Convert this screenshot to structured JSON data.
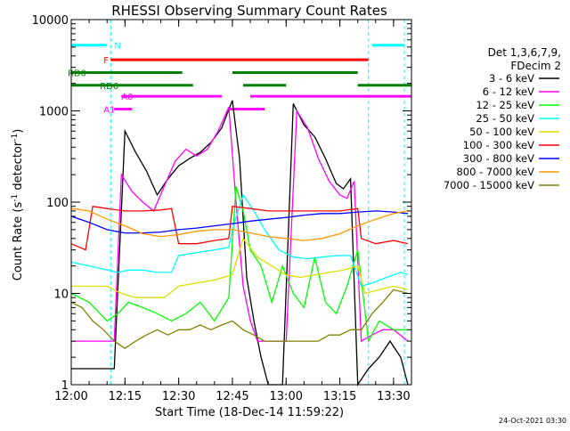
{
  "chart_data": {
    "type": "line",
    "title": "RHESSI Observing Summary Count Rates",
    "xlabel": "Start Time (18-Dec-14 11:59:22)",
    "ylabel_main": "Count Rate (s",
    "ylabel_sup": "-1",
    "ylabel_mid": " detector",
    "ylabel_sup2": "-1",
    "ylabel_end": ")",
    "yscale": "log",
    "xlim": [
      "12:00",
      "13:35"
    ],
    "ylim": [
      1,
      10000
    ],
    "xticks": [
      "12:00",
      "12:15",
      "12:30",
      "12:45",
      "13:00",
      "13:15",
      "13:30"
    ],
    "yticks": [
      {
        "value": 1,
        "label": "1"
      },
      {
        "value": 10,
        "label": "10"
      },
      {
        "value": 100,
        "label": "100"
      },
      {
        "value": 1000,
        "label": "1000"
      },
      {
        "value": 10000,
        "label": "10000"
      }
    ],
    "legend_title_1": "Det 1,3,6,7,9,",
    "legend_title_2": "FDecim 2",
    "legend_placement": "right",
    "footer_timestamp": "24-Oct-2021 03:30",
    "series": [
      {
        "name": "3 - 6 keV",
        "color": "#000000",
        "x": [
          "12:00",
          "12:05",
          "12:10",
          "12:12",
          "12:15",
          "12:18",
          "12:21",
          "12:24",
          "12:27",
          "12:30",
          "12:33",
          "12:36",
          "12:39",
          "12:42",
          "12:45",
          "12:47",
          "12:49",
          "12:51",
          "12:53",
          "12:55",
          "12:57",
          "12:59",
          "13:02",
          "13:05",
          "13:08",
          "13:11",
          "13:14",
          "13:16",
          "13:18",
          "13:20",
          "13:23",
          "13:26",
          "13:29",
          "13:32",
          "13:34"
        ],
        "y": [
          1.5,
          1.5,
          1.5,
          1.5,
          600,
          350,
          220,
          120,
          180,
          250,
          300,
          350,
          450,
          650,
          1300,
          300,
          15,
          5,
          2,
          1,
          1,
          1,
          1200,
          700,
          520,
          300,
          160,
          140,
          180,
          1,
          1.5,
          2,
          3,
          2,
          1
        ]
      },
      {
        "name": "6 - 12 keV",
        "color": "#ff00ff",
        "x": [
          "12:00",
          "12:05",
          "12:10",
          "12:12",
          "12:14",
          "12:17",
          "12:20",
          "12:23",
          "12:26",
          "12:29",
          "12:32",
          "12:35",
          "12:38",
          "12:41",
          "12:44",
          "12:46",
          "12:48",
          "12:50",
          "12:52",
          "12:54",
          "12:57",
          "13:00",
          "13:03",
          "13:06",
          "13:09",
          "13:12",
          "13:15",
          "13:17",
          "13:19",
          "13:21",
          "13:24",
          "13:27",
          "13:30",
          "13:34"
        ],
        "y": [
          3,
          3,
          3,
          3,
          200,
          130,
          100,
          80,
          150,
          280,
          380,
          320,
          380,
          600,
          1100,
          100,
          12,
          5,
          3,
          3,
          3,
          3,
          1000,
          650,
          300,
          170,
          120,
          110,
          170,
          3,
          3.5,
          4,
          4,
          3
        ]
      },
      {
        "name": "12 - 25 keV",
        "color": "#00ff00",
        "x": [
          "12:00",
          "12:05",
          "12:10",
          "12:13",
          "12:16",
          "12:20",
          "12:24",
          "12:28",
          "12:32",
          "12:36",
          "12:40",
          "12:44",
          "12:46",
          "12:48",
          "12:50",
          "12:53",
          "12:56",
          "12:59",
          "13:02",
          "13:05",
          "13:08",
          "13:11",
          "13:14",
          "13:17",
          "13:20",
          "13:23",
          "13:26",
          "13:30",
          "13:34"
        ],
        "y": [
          10,
          8,
          5,
          6,
          8,
          7,
          6,
          5,
          6,
          8,
          5,
          9,
          150,
          80,
          30,
          20,
          8,
          20,
          10,
          7,
          25,
          8,
          6,
          12,
          30,
          3,
          5,
          4,
          4
        ]
      },
      {
        "name": "25 - 50 keV",
        "color": "#00ffff",
        "x": [
          "12:00",
          "12:05",
          "12:10",
          "12:13",
          "12:16",
          "12:20",
          "12:24",
          "12:28",
          "12:30",
          "12:35",
          "12:40",
          "12:44",
          "12:45",
          "12:48",
          "12:51",
          "12:54",
          "12:58",
          "13:02",
          "13:06",
          "13:10",
          "13:14",
          "13:18",
          "13:21",
          "13:24",
          "13:28",
          "13:32",
          "13:34"
        ],
        "y": [
          22,
          20,
          18,
          17,
          18,
          18,
          17,
          17,
          26,
          28,
          30,
          32,
          50,
          120,
          80,
          50,
          30,
          25,
          24,
          25,
          26,
          26,
          12,
          13,
          15,
          17,
          16
        ]
      },
      {
        "name": "50 - 100 keV",
        "color": "#dddd00",
        "x": [
          "12:00",
          "12:05",
          "12:10",
          "12:14",
          "12:18",
          "12:22",
          "12:26",
          "12:30",
          "12:35",
          "12:40",
          "12:45",
          "12:48",
          "12:52",
          "12:56",
          "13:00",
          "13:04",
          "13:08",
          "13:12",
          "13:16",
          "13:20",
          "13:22",
          "13:26",
          "13:30",
          "13:34"
        ],
        "y": [
          12,
          12,
          12,
          10,
          9,
          9,
          9,
          12,
          13,
          14,
          16,
          40,
          25,
          20,
          16,
          15,
          16,
          17,
          18,
          20,
          10,
          11,
          12,
          11
        ]
      },
      {
        "name": "100 - 300 keV",
        "color": "#ff0000",
        "x": [
          "12:00",
          "12:04",
          "12:06",
          "12:10",
          "12:15",
          "12:20",
          "12:25",
          "12:28",
          "12:30",
          "12:35",
          "12:40",
          "12:44",
          "12:45",
          "12:50",
          "12:55",
          "13:00",
          "13:05",
          "13:10",
          "13:15",
          "13:20",
          "13:21",
          "13:25",
          "13:30",
          "13:34"
        ],
        "y": [
          35,
          30,
          90,
          85,
          80,
          80,
          82,
          85,
          35,
          35,
          38,
          40,
          90,
          85,
          80,
          80,
          80,
          80,
          80,
          85,
          40,
          35,
          38,
          35
        ]
      },
      {
        "name": "300 - 800 keV",
        "color": "#0000ff",
        "x": [
          "12:00",
          "12:05",
          "12:10",
          "12:15",
          "12:20",
          "12:25",
          "12:30",
          "12:35",
          "12:40",
          "12:45",
          "12:50",
          "12:55",
          "13:00",
          "13:05",
          "13:10",
          "13:15",
          "13:20",
          "13:25",
          "13:30",
          "13:34"
        ],
        "y": [
          70,
          60,
          50,
          46,
          46,
          47,
          50,
          52,
          55,
          58,
          62,
          65,
          68,
          72,
          75,
          75,
          78,
          80,
          78,
          75
        ]
      },
      {
        "name": "800 - 7000 keV",
        "color": "#ff9900",
        "x": [
          "12:00",
          "12:05",
          "12:10",
          "12:15",
          "12:20",
          "12:25",
          "12:30",
          "12:35",
          "12:40",
          "12:45",
          "12:50",
          "12:55",
          "13:00",
          "13:05",
          "13:10",
          "13:15",
          "13:20",
          "13:25",
          "13:30",
          "13:34"
        ],
        "y": [
          85,
          80,
          65,
          55,
          45,
          42,
          44,
          48,
          50,
          50,
          46,
          42,
          40,
          38,
          40,
          45,
          55,
          65,
          75,
          80
        ]
      },
      {
        "name": "7000 - 15000 keV",
        "color": "#808000",
        "x": [
          "12:00",
          "12:03",
          "12:06",
          "12:09",
          "12:12",
          "12:15",
          "12:18",
          "12:21",
          "12:24",
          "12:27",
          "12:30",
          "12:33",
          "12:36",
          "12:39",
          "12:42",
          "12:45",
          "12:48",
          "12:51",
          "12:54",
          "12:57",
          "13:00",
          "13:03",
          "13:06",
          "13:09",
          "13:12",
          "13:15",
          "13:18",
          "13:21",
          "13:24",
          "13:27",
          "13:30",
          "13:34"
        ],
        "y": [
          8,
          7,
          5,
          4,
          3,
          2.5,
          3,
          3.5,
          4,
          3.5,
          4,
          4,
          4.5,
          4,
          4.5,
          5,
          4,
          3.5,
          3,
          3,
          3,
          3,
          3,
          3,
          3.5,
          3.5,
          4,
          4,
          6,
          8,
          11,
          10
        ]
      }
    ],
    "flags": [
      {
        "name": "N",
        "color": "#00ffff",
        "level": 0.93,
        "segments": [
          [
            "12:00",
            "12:10"
          ],
          [
            "13:24",
            "13:33"
          ]
        ]
      },
      {
        "name": "F",
        "color": "#ff0000",
        "level": 0.89,
        "segments": [
          [
            "12:11",
            "13:23"
          ]
        ]
      },
      {
        "name": "RD0",
        "color": "#008000",
        "level": 0.855,
        "segments": [
          [
            "12:00",
            "12:31"
          ],
          [
            "12:45",
            "13:20"
          ]
        ]
      },
      {
        "name": "RD6",
        "color": "#008000",
        "level": 0.82,
        "segments": [
          [
            "12:00",
            "12:34"
          ],
          [
            "12:48",
            "13:00"
          ],
          [
            "13:20",
            "13:35"
          ]
        ]
      },
      {
        "name": "A0",
        "color": "#ff00ff",
        "level": 0.79,
        "segments": [
          [
            "12:14",
            "12:42"
          ],
          [
            "12:50",
            "13:35"
          ]
        ]
      },
      {
        "name": "A1",
        "color": "#ff00ff",
        "level": 0.755,
        "segments": [
          [
            "12:12",
            "12:17"
          ],
          [
            "12:44",
            "12:54"
          ]
        ]
      }
    ],
    "flag_labels": [
      {
        "text": "N",
        "color": "#00ffff",
        "x": "12:12",
        "level": 0.93
      },
      {
        "text": "F",
        "color": "#ff0000",
        "x": "12:09",
        "level": 0.89
      },
      {
        "text": "RD0",
        "color": "#008000",
        "x": "11:59",
        "level": 0.855
      },
      {
        "text": "RD6",
        "color": "#008000",
        "x": "12:08",
        "level": 0.82
      },
      {
        "text": "A0",
        "color": "#ff00ff",
        "x": "12:14",
        "level": 0.79
      },
      {
        "text": "A1",
        "color": "#ff00ff",
        "x": "12:09",
        "level": 0.755
      }
    ],
    "night_markers": {
      "color": "#00ffff",
      "x": [
        "12:11",
        "13:23",
        "13:33"
      ]
    },
    "grid": false
  }
}
